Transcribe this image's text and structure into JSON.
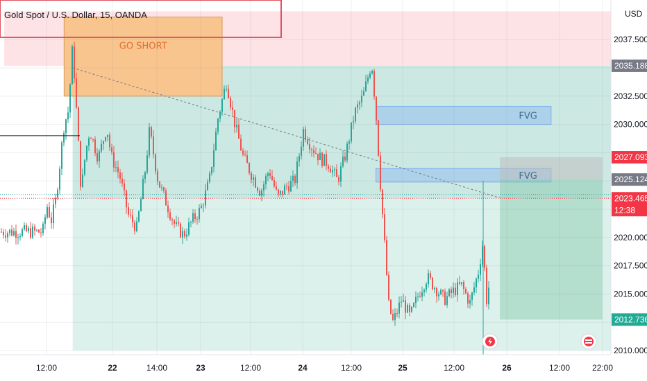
{
  "header": {
    "symbol_title": "Gold Spot / U.S. Dollar, 15, OANDA"
  },
  "price_axis": {
    "currency": "USD"
  },
  "chart_data": {
    "type": "candlestick",
    "title": "Gold Spot / U.S. Dollar, 15, OANDA",
    "ylim": [
      2010.0,
      2040.0
    ],
    "y_ticks": [
      2010.0,
      2012.5,
      2015.0,
      2017.5,
      2020.0,
      2022.5,
      2025.0,
      2027.5,
      2030.0,
      2032.5,
      2035.0,
      2037.5
    ],
    "y_tick_labels": [
      "2010.000",
      "",
      "2015.000",
      "2017.500",
      "2020.000",
      "",
      "",
      "",
      "2030.000",
      "2032.500",
      "",
      "2037.500"
    ],
    "x_ticks": [
      "12:00",
      "22",
      "14:00",
      "23",
      "12:00",
      "24",
      "12:00",
      "25",
      "12:00",
      "26",
      "12:00",
      "22:00"
    ],
    "price_path": [
      [
        "2021-02-21T09:00",
        2020.5
      ],
      [
        "2021-02-21T10:00",
        2022.8
      ],
      [
        "2021-02-21T11:00",
        2021.5
      ],
      [
        "2021-02-21T12:00",
        2023.2
      ],
      [
        "2021-02-21T13:00",
        2026.5
      ],
      [
        "2021-02-21T14:00",
        2030.0
      ],
      [
        "2021-02-21T15:00",
        2031.2
      ],
      [
        "2021-02-21T16:00",
        2037.0
      ],
      [
        "2021-02-21T17:00",
        2030.5
      ],
      [
        "2021-02-21T18:00",
        2024.0
      ],
      [
        "2021-02-21T19:00",
        2027.5
      ],
      [
        "2021-02-21T20:00",
        2029.5
      ],
      [
        "2021-02-21T22:00",
        2027.0
      ],
      [
        "2021-02-22T00:00",
        2029.8
      ],
      [
        "2021-02-22T01:00",
        2027.2
      ],
      [
        "2021-02-22T03:00",
        2025.5
      ],
      [
        "2021-02-22T05:00",
        2022.0
      ],
      [
        "2021-02-22T07:00",
        2020.8
      ],
      [
        "2021-02-22T09:00",
        2026.0
      ],
      [
        "2021-02-22T10:00",
        2029.5
      ],
      [
        "2021-02-22T12:00",
        2025.0
      ],
      [
        "2021-02-22T14:00",
        2023.0
      ],
      [
        "2021-02-22T16:00",
        2021.0
      ],
      [
        "2021-02-22T18:00",
        2020.2
      ],
      [
        "2021-02-22T20:00",
        2021.5
      ],
      [
        "2021-02-22T22:00",
        2022.5
      ],
      [
        "2021-02-23T00:00",
        2025.0
      ],
      [
        "2021-02-23T02:00",
        2030.5
      ],
      [
        "2021-02-23T04:00",
        2033.8
      ],
      [
        "2021-02-23T06:00",
        2030.0
      ],
      [
        "2021-02-23T08:00",
        2027.0
      ],
      [
        "2021-02-23T10:00",
        2025.5
      ],
      [
        "2021-02-23T12:00",
        2024.0
      ],
      [
        "2021-02-23T14:00",
        2026.0
      ],
      [
        "2021-02-23T16:00",
        2023.5
      ],
      [
        "2021-02-23T18:00",
        2024.5
      ],
      [
        "2021-02-23T20:00",
        2025.0
      ],
      [
        "2021-02-23T22:00",
        2029.5
      ],
      [
        "2021-02-24T00:00",
        2028.0
      ],
      [
        "2021-02-24T02:00",
        2027.0
      ],
      [
        "2021-02-24T04:00",
        2026.5
      ],
      [
        "2021-02-24T06:00",
        2025.0
      ],
      [
        "2021-02-24T08:00",
        2027.5
      ],
      [
        "2021-02-24T10:00",
        2031.0
      ],
      [
        "2021-02-24T12:00",
        2032.5
      ],
      [
        "2021-02-24T14:00",
        2035.5
      ],
      [
        "2021-02-24T15:00",
        2031.0
      ],
      [
        "2021-02-24T16:00",
        2025.0
      ],
      [
        "2021-02-24T17:00",
        2019.5
      ],
      [
        "2021-02-24T18:00",
        2014.0
      ],
      [
        "2021-02-24T19:00",
        2012.5
      ],
      [
        "2021-02-24T21:00",
        2014.5
      ],
      [
        "2021-02-24T23:00",
        2013.0
      ],
      [
        "2021-02-25T01:00",
        2015.0
      ],
      [
        "2021-02-25T03:00",
        2016.5
      ],
      [
        "2021-02-25T05:00",
        2015.5
      ],
      [
        "2021-02-25T07:00",
        2014.5
      ],
      [
        "2021-02-25T09:00",
        2015.2
      ],
      [
        "2021-02-25T11:00",
        2015.8
      ],
      [
        "2021-02-25T13:00",
        2014.2
      ],
      [
        "2021-02-25T15:00",
        2017.0
      ],
      [
        "2021-02-25T16:00",
        2019.5
      ],
      [
        "2021-02-25T17:00",
        2014.0
      ],
      [
        "2021-02-25T18:00",
        2018.0
      ],
      [
        "2021-02-25T19:00",
        2021.5
      ],
      [
        "2021-02-25T20:00",
        2023.5
      ]
    ],
    "zones": {
      "short_entry_box": {
        "label": "GO SHORT",
        "from": "2021-02-21T14:00",
        "to": "2021-02-23T03:00",
        "ymin": 2032.5,
        "ymax": 2039.5,
        "color": "#f8c58f"
      },
      "red_zone": {
        "from": "2021-02-21T00:00",
        "to": "2021-02-26T22:00",
        "ymin": 2035.188,
        "ymax": 2040.0,
        "color": "#fde3e6"
      },
      "profit_zone": {
        "from": "2021-02-21T16:00",
        "to": "2021-02-26T22:00",
        "ymin": 2023.465,
        "ymax": 2035.188,
        "color": "#cce8e2"
      },
      "profit_zone_low": {
        "from": "2021-02-21T16:00",
        "to": "2021-02-26T22:00",
        "ymin": 2010.0,
        "ymax": 2023.465,
        "color": "#ddf1ec"
      },
      "fvg_upper": {
        "label": "FVG",
        "from": "2021-02-24T15:00",
        "to": "2021-02-26T08:00",
        "ymin": 2030.0,
        "ymax": 2031.6
      },
      "fvg_lower": {
        "label": "FVG",
        "from": "2021-02-24T15:00",
        "to": "2021-02-26T08:00",
        "ymin": 2024.9,
        "ymax": 2026.1
      },
      "trade_box_gray": {
        "from": "2021-02-25T20:00",
        "to": "2021-02-26T20:00",
        "ymin": 2025.124,
        "ymax": 2027.093
      },
      "trade_box_green": {
        "from": "2021-02-25T20:00",
        "to": "2021-02-26T20:00",
        "ymin": 2012.736,
        "ymax": 2025.124
      }
    },
    "trendline": {
      "from": [
        "2021-02-21T16:00",
        2035.0
      ],
      "to": [
        "2021-02-25T20:00",
        2023.5
      ]
    },
    "price_tags": [
      {
        "value": "2035.188",
        "color": "#787b86"
      },
      {
        "value": "2027.093",
        "color": "#f23645"
      },
      {
        "value": "2025.124",
        "color": "#787b86"
      },
      {
        "value": "2023.465",
        "color": "#f23645"
      },
      {
        "value": "12:38",
        "color": "#f23645"
      },
      {
        "value": "2012.736",
        "color": "#22ab94"
      }
    ],
    "colors": {
      "up": "#26a69a",
      "down": "#ef5350"
    }
  }
}
